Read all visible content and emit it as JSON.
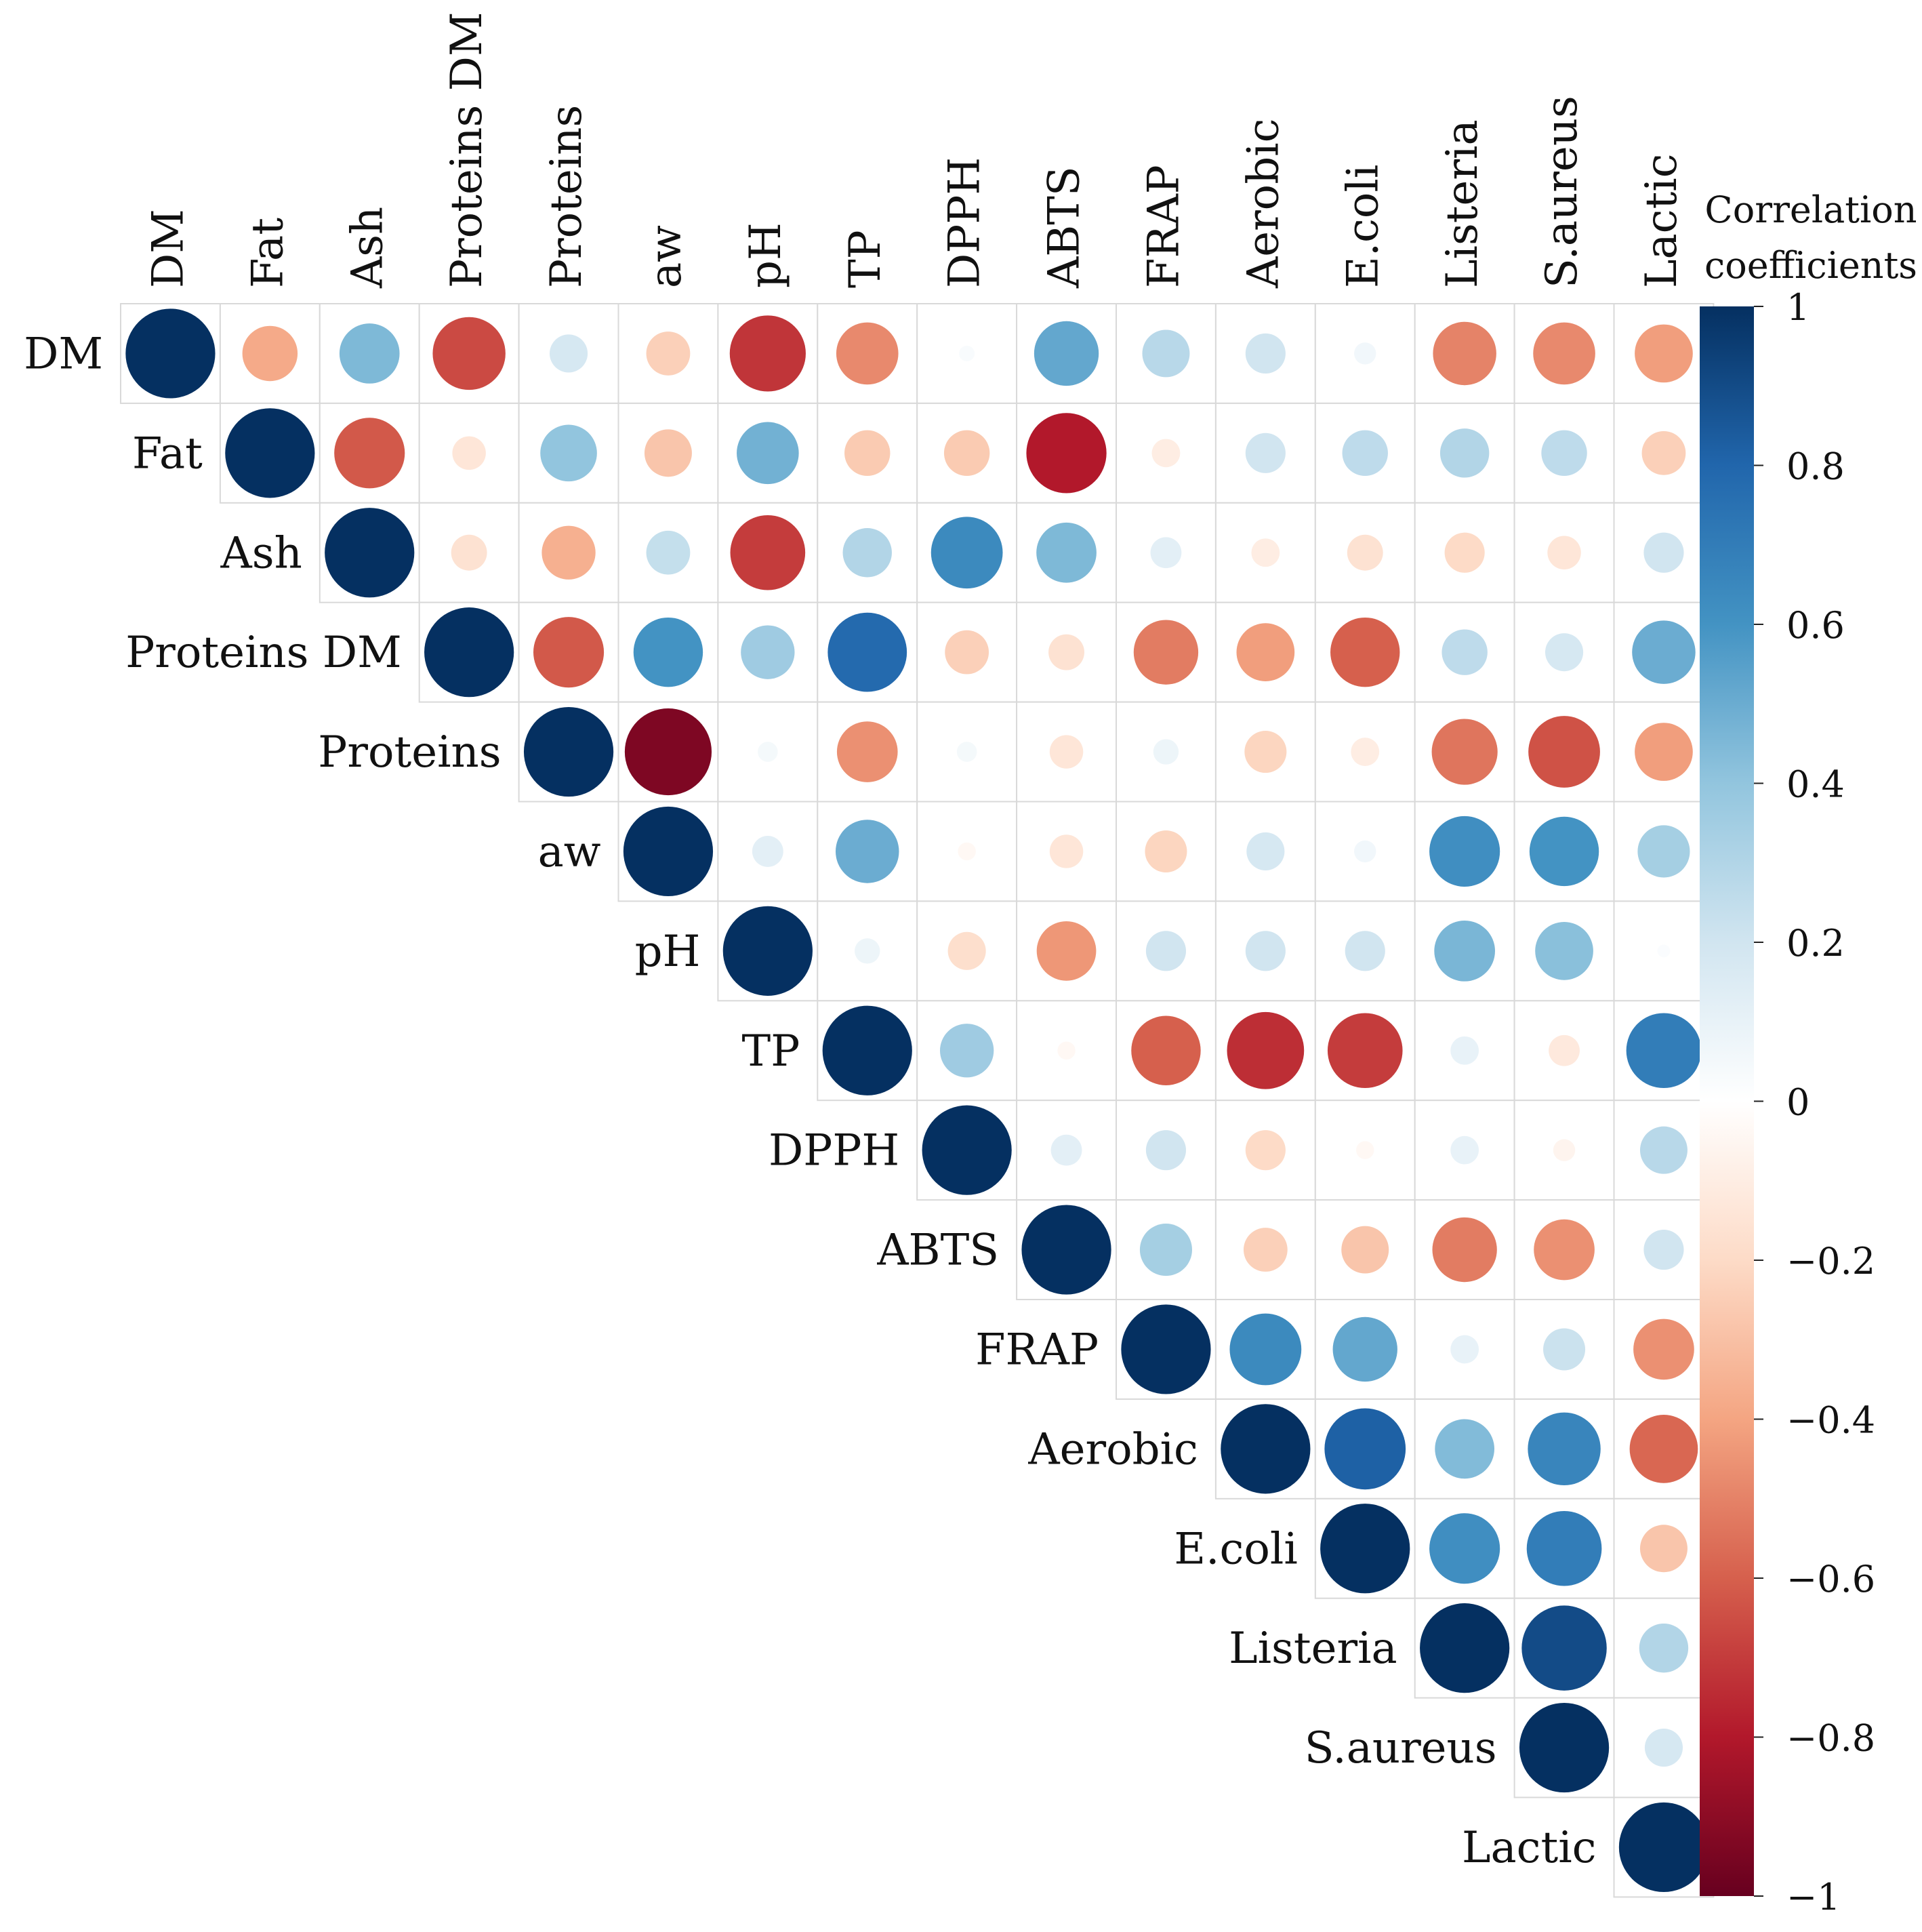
{
  "chart_data": {
    "type": "heatmap",
    "subtype": "correlogram-upper-circles",
    "variables": [
      "DM",
      "Fat",
      "Ash",
      "Proteins DM",
      "Proteins",
      "aw",
      "pH",
      "TP",
      "DPPH",
      "ABTS",
      "FRAP",
      "Aerobic",
      "E.coli",
      "Listeria",
      "S.aureus",
      "Lactic"
    ],
    "matrix": [
      [
        1,
        -0.38,
        0.45,
        -0.66,
        0.18,
        -0.24,
        -0.72,
        -0.48,
        0.03,
        0.52,
        0.28,
        0.2,
        0.06,
        -0.5,
        -0.48,
        -0.42
      ],
      [
        null,
        1,
        -0.62,
        -0.14,
        0.4,
        -0.28,
        0.48,
        -0.26,
        -0.26,
        -0.8,
        -0.1,
        0.2,
        0.26,
        0.3,
        0.26,
        -0.24
      ],
      [
        null,
        null,
        1,
        -0.16,
        -0.36,
        0.24,
        -0.7,
        0.3,
        0.64,
        0.45,
        0.12,
        -0.1,
        -0.16,
        -0.2,
        -0.14,
        0.2
      ],
      [
        null,
        null,
        null,
        1,
        -0.62,
        0.6,
        0.36,
        0.78,
        -0.24,
        -0.16,
        -0.52,
        -0.42,
        -0.6,
        0.26,
        0.18,
        0.5
      ],
      [
        null,
        null,
        null,
        null,
        1,
        -0.94,
        0.05,
        -0.46,
        0.05,
        -0.14,
        0.08,
        -0.22,
        -0.1,
        -0.54,
        -0.64,
        -0.42
      ],
      [
        null,
        null,
        null,
        null,
        null,
        1,
        0.12,
        0.5,
        -0.04,
        -0.14,
        -0.22,
        0.18,
        0.06,
        0.62,
        0.6,
        0.34
      ],
      [
        null,
        null,
        null,
        null,
        null,
        null,
        1,
        0.08,
        -0.18,
        -0.44,
        0.2,
        0.2,
        0.2,
        0.46,
        0.42,
        0.02
      ],
      [
        null,
        null,
        null,
        null,
        null,
        null,
        null,
        1,
        0.36,
        -0.04,
        -0.6,
        -0.74,
        -0.7,
        0.1,
        -0.12,
        0.7
      ],
      [
        null,
        null,
        null,
        null,
        null,
        null,
        null,
        null,
        1,
        0.12,
        0.2,
        -0.2,
        -0.04,
        0.1,
        -0.06,
        0.28
      ],
      [
        null,
        null,
        null,
        null,
        null,
        null,
        null,
        null,
        null,
        1,
        0.34,
        -0.24,
        -0.28,
        -0.52,
        -0.46,
        0.2
      ],
      [
        null,
        null,
        null,
        null,
        null,
        null,
        null,
        null,
        null,
        null,
        1,
        0.64,
        0.52,
        0.1,
        0.22,
        -0.46
      ],
      [
        null,
        null,
        null,
        null,
        null,
        null,
        null,
        null,
        null,
        null,
        null,
        1,
        0.82,
        0.44,
        0.66,
        -0.58
      ],
      [
        null,
        null,
        null,
        null,
        null,
        null,
        null,
        null,
        null,
        null,
        null,
        null,
        1,
        0.62,
        0.7,
        -0.28
      ],
      [
        null,
        null,
        null,
        null,
        null,
        null,
        null,
        null,
        null,
        null,
        null,
        null,
        null,
        1,
        0.9,
        0.3
      ],
      [
        null,
        null,
        null,
        null,
        null,
        null,
        null,
        null,
        null,
        null,
        null,
        null,
        null,
        null,
        1,
        0.18
      ],
      [
        null,
        null,
        null,
        null,
        null,
        null,
        null,
        null,
        null,
        null,
        null,
        null,
        null,
        null,
        null,
        1
      ]
    ],
    "legend": {
      "title_lines": [
        "Correlation",
        "coefficients"
      ],
      "ticks": [
        1,
        0.8,
        0.6,
        0.4,
        0.2,
        0,
        -0.2,
        -0.4,
        -0.6,
        -0.8,
        -1
      ],
      "tick_labels": [
        "1",
        "0.8",
        "0.6",
        "0.4",
        "0.2",
        "0",
        "−0.2",
        "−0.4",
        "−0.6",
        "−0.8",
        "−1"
      ],
      "range": [
        -1,
        1
      ],
      "placement": "right"
    },
    "colors": {
      "negative_end": "#67001f",
      "palette": [
        "#67001f",
        "#b2182b",
        "#d6604d",
        "#f4a582",
        "#fddbc7",
        "#ffffff",
        "#d1e5f0",
        "#92c5de",
        "#4393c3",
        "#2166ac",
        "#053061"
      ],
      "positive_end": "#053061",
      "grid": "#d9d9d9"
    }
  }
}
